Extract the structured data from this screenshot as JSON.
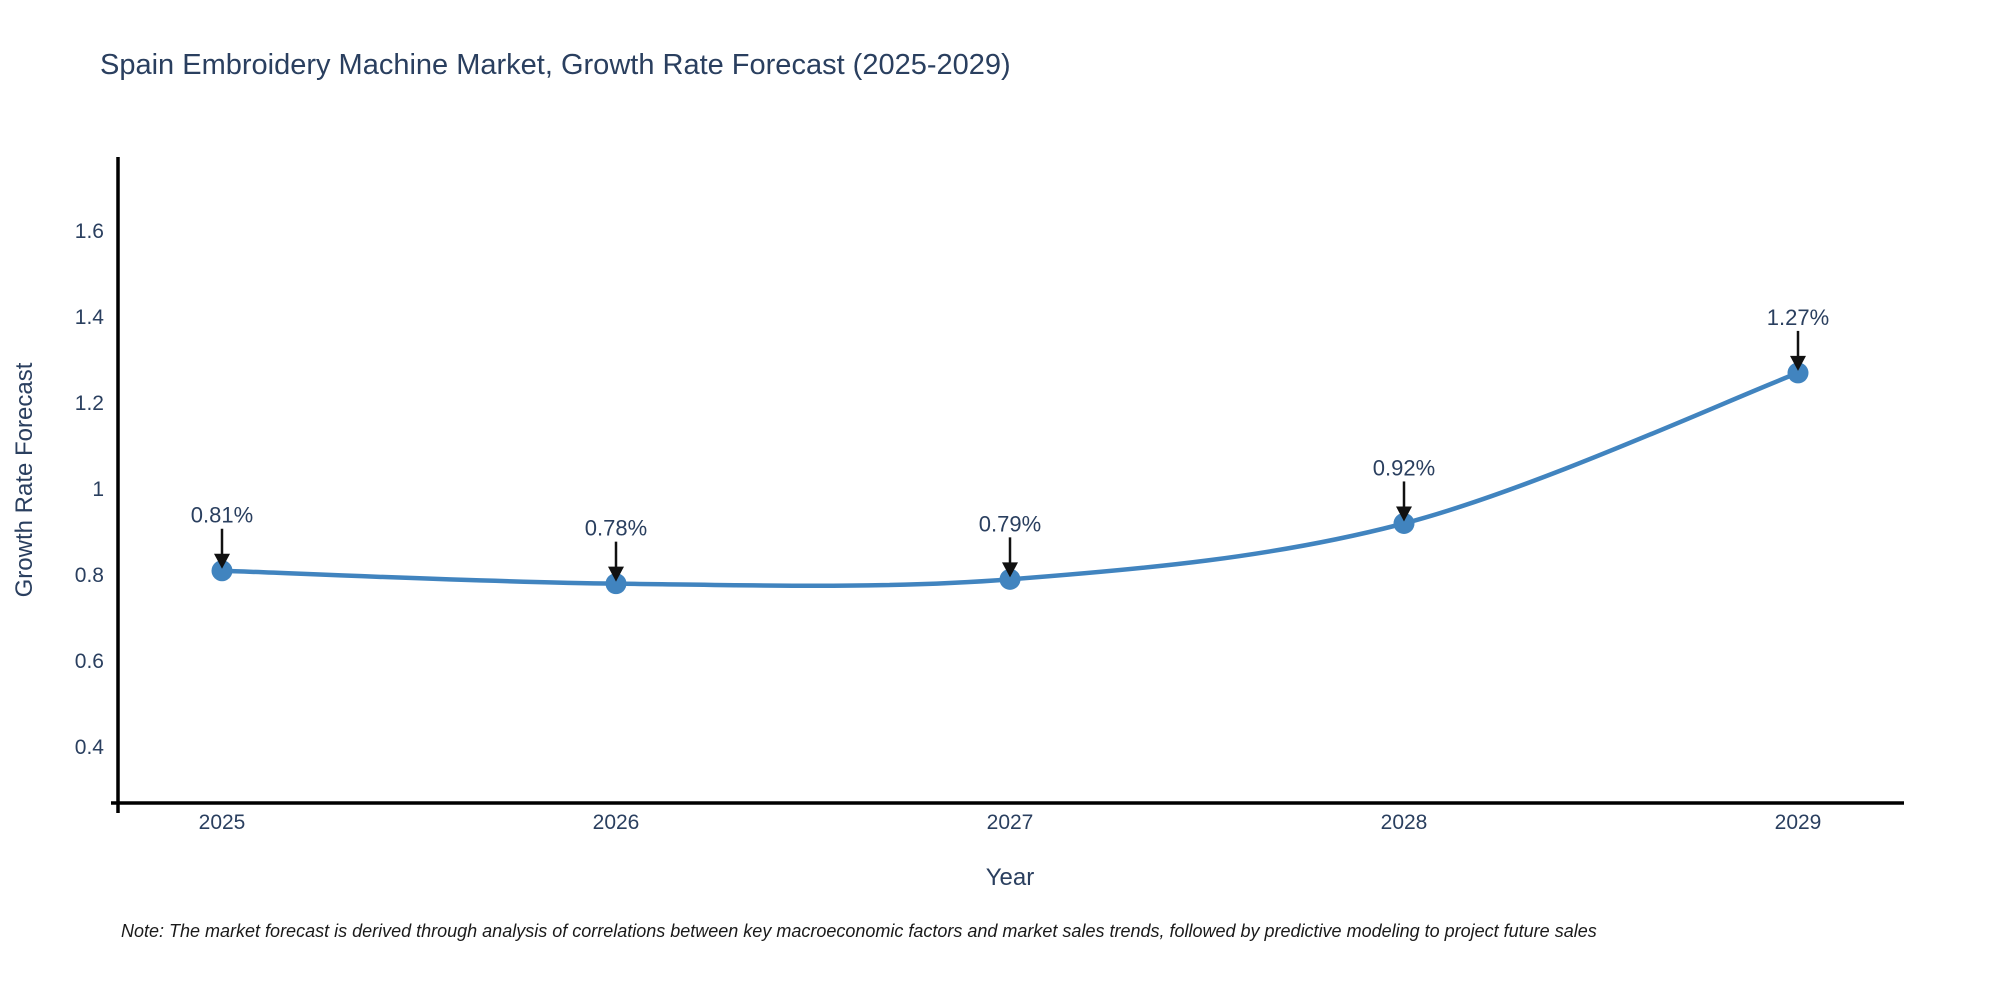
{
  "title": "Spain Embroidery Machine Market, Growth Rate Forecast (2025-2029)",
  "note": "Note: The market forecast is derived through analysis of correlations between key macroeconomic factors and market sales trends, followed by predictive modeling to project future sales",
  "chart_data": {
    "type": "line",
    "title": "Spain Embroidery Machine Market, Growth Rate Forecast (2025-2029)",
    "xlabel": "Year",
    "ylabel": "Growth Rate Forecast",
    "x": [
      2025,
      2026,
      2027,
      2028,
      2029
    ],
    "xtick_labels": [
      "2025",
      "2026",
      "2027",
      "2028",
      "2029"
    ],
    "series": [
      {
        "name": "Growth Rate Forecast",
        "values": [
          0.81,
          0.78,
          0.79,
          0.92,
          1.27
        ],
        "point_labels": [
          "0.81%",
          "0.78%",
          "0.79%",
          "0.92%",
          "1.27%"
        ]
      }
    ],
    "yticks": [
      0.4,
      0.6,
      0.8,
      1,
      1.2,
      1.4,
      1.6
    ],
    "ytick_labels": [
      "0.4",
      "0.6",
      "0.8",
      "1",
      "1.2",
      "1.4",
      "1.6"
    ],
    "ylim": [
      0.27,
      1.772
    ],
    "grid": false,
    "legend": "none",
    "line_shape": "spline",
    "colors": {
      "line": "#4184bf",
      "marker": "#4184bf",
      "axis_line": "#000000",
      "text": "#2a3f5f",
      "annotation_text": "#2a3f5f",
      "annotation_arrow": "#111111",
      "note_text": "#1a1a1a",
      "background": "#ffffff"
    }
  }
}
